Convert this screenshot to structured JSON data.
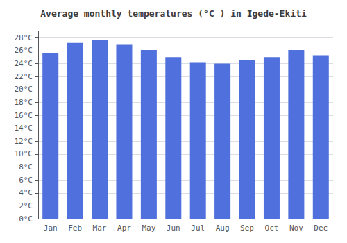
{
  "chart_data": {
    "type": "bar",
    "title": "Average monthly temperatures (°C ) in Igede-Ekiti",
    "categories": [
      "Jan",
      "Feb",
      "Mar",
      "Apr",
      "May",
      "Jun",
      "Jul",
      "Aug",
      "Sep",
      "Oct",
      "Nov",
      "Dec"
    ],
    "values": [
      25.6,
      27.2,
      27.6,
      26.9,
      26.1,
      25.0,
      24.1,
      24.0,
      24.5,
      25.0,
      26.1,
      25.3
    ],
    "ylim": [
      0,
      29
    ],
    "yticks": [
      {
        "value": 0,
        "label": "0°C"
      },
      {
        "value": 2,
        "label": "2°C"
      },
      {
        "value": 4,
        "label": "4°C"
      },
      {
        "value": 6,
        "label": "6°C"
      },
      {
        "value": 8,
        "label": "8°C"
      },
      {
        "value": 10,
        "label": "10°C"
      },
      {
        "value": 12,
        "label": "12°C"
      },
      {
        "value": 14,
        "label": "14°C"
      },
      {
        "value": 16,
        "label": "16°C"
      },
      {
        "value": 18,
        "label": "18°C"
      },
      {
        "value": 20,
        "label": "20°C"
      },
      {
        "value": 22,
        "label": "22°C"
      },
      {
        "value": 24,
        "label": "24°C"
      },
      {
        "value": 26,
        "label": "26°C"
      },
      {
        "value": 28,
        "label": "28°C"
      }
    ],
    "grid": true
  }
}
